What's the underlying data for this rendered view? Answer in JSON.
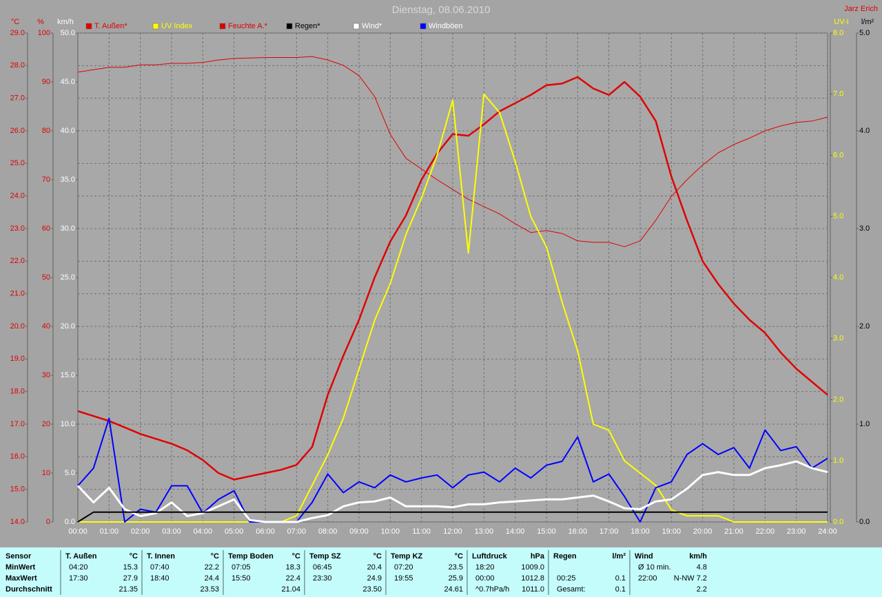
{
  "chart_data": {
    "type": "line",
    "title": "Dienstag, 08.06.2010",
    "author": "Jarz Erich",
    "background": "#a4a4a4",
    "grid": true,
    "grid_axis": "temp",
    "axes": {
      "temp": {
        "label": "°C",
        "color": "#e00000",
        "lim": [
          14,
          29
        ],
        "ticks": [
          {
            "value": 14,
            "label": "14.0"
          },
          {
            "value": 15,
            "label": "15.0"
          },
          {
            "value": 16,
            "label": "16.0"
          },
          {
            "value": 17,
            "label": "17.0"
          },
          {
            "value": 18,
            "label": "18.0"
          },
          {
            "value": 19,
            "label": "19.0"
          },
          {
            "value": 20,
            "label": "20.0"
          },
          {
            "value": 21,
            "label": "21.0"
          },
          {
            "value": 22,
            "label": "22.0"
          },
          {
            "value": 23,
            "label": "23.0"
          },
          {
            "value": 24,
            "label": "24.0"
          },
          {
            "value": 25,
            "label": "25.0"
          },
          {
            "value": 26,
            "label": "26.0"
          },
          {
            "value": 27,
            "label": "27.0"
          },
          {
            "value": 28,
            "label": "28.0"
          },
          {
            "value": 29,
            "label": "29.0"
          }
        ]
      },
      "hum": {
        "label": "%",
        "color": "#e00000",
        "lim": [
          0,
          100
        ],
        "ticks": [
          0,
          10,
          20,
          30,
          40,
          50,
          60,
          70,
          80,
          90,
          100
        ]
      },
      "wind": {
        "label": "km/h",
        "color": "#ffffff",
        "lim": [
          0,
          50
        ],
        "ticks": [
          {
            "value": 0,
            "label": "0.0"
          },
          {
            "value": 5,
            "label": "5.0"
          },
          {
            "value": 10,
            "label": "10.0"
          },
          {
            "value": 15,
            "label": "15.0"
          },
          {
            "value": 20,
            "label": "20.0"
          },
          {
            "value": 25,
            "label": "25.0"
          },
          {
            "value": 30,
            "label": "30.0"
          },
          {
            "value": 35,
            "label": "35.0"
          },
          {
            "value": 40,
            "label": "40.0"
          },
          {
            "value": 45,
            "label": "45.0"
          },
          {
            "value": 50,
            "label": "50.0"
          }
        ]
      },
      "uv": {
        "label": "UV-I",
        "color": "#ffff00",
        "lim": [
          0,
          8
        ],
        "ticks": [
          {
            "value": 0,
            "label": "0.0"
          },
          {
            "value": 1,
            "label": "1.0"
          },
          {
            "value": 2,
            "label": "2.0"
          },
          {
            "value": 3,
            "label": "3.0"
          },
          {
            "value": 4,
            "label": "4.0"
          },
          {
            "value": 5,
            "label": "5.0"
          },
          {
            "value": 6,
            "label": "6.0"
          },
          {
            "value": 7,
            "label": "7.0"
          },
          {
            "value": 8,
            "label": "8.0"
          }
        ]
      },
      "rain": {
        "label": "l/m²",
        "color": "#000000",
        "lim": [
          0,
          5
        ],
        "ticks": [
          {
            "value": 0,
            "label": "0.0"
          },
          {
            "value": 1,
            "label": "1.0"
          },
          {
            "value": 2,
            "label": "2.0"
          },
          {
            "value": 3,
            "label": "3.0"
          },
          {
            "value": 4,
            "label": "4.0"
          },
          {
            "value": 5,
            "label": "5.0"
          }
        ]
      }
    },
    "xlim": [
      0,
      24
    ],
    "xticks": [
      {
        "value": 0,
        "label": "00:00"
      },
      {
        "value": 1,
        "label": "01:00"
      },
      {
        "value": 2,
        "label": "02:00"
      },
      {
        "value": 3,
        "label": "03:00"
      },
      {
        "value": 4,
        "label": "04:00"
      },
      {
        "value": 5,
        "label": "05:00"
      },
      {
        "value": 6,
        "label": "06:00"
      },
      {
        "value": 7,
        "label": "07:00"
      },
      {
        "value": 8,
        "label": "08:00"
      },
      {
        "value": 9,
        "label": "09:00"
      },
      {
        "value": 10,
        "label": "10:00"
      },
      {
        "value": 11,
        "label": "11:00"
      },
      {
        "value": 12,
        "label": "12:00"
      },
      {
        "value": 13,
        "label": "13:00"
      },
      {
        "value": 14,
        "label": "14:00"
      },
      {
        "value": 15,
        "label": "15:00"
      },
      {
        "value": 16,
        "label": "16:00"
      },
      {
        "value": 17,
        "label": "17:00"
      },
      {
        "value": 18,
        "label": "18:00"
      },
      {
        "value": 19,
        "label": "19:00"
      },
      {
        "value": 20,
        "label": "20:00"
      },
      {
        "value": 21,
        "label": "21:00"
      },
      {
        "value": 22,
        "label": "22:00"
      },
      {
        "value": 23,
        "label": "23:00"
      },
      {
        "value": 24,
        "label": "24:00"
      }
    ],
    "x": [
      0,
      0.5,
      1,
      1.5,
      2,
      2.5,
      3,
      3.5,
      4,
      4.5,
      5,
      5.5,
      6,
      6.5,
      7,
      7.5,
      8,
      8.5,
      9,
      9.5,
      10,
      10.5,
      11,
      11.5,
      12,
      12.5,
      13,
      13.5,
      14,
      14.5,
      15,
      15.5,
      16,
      16.5,
      17,
      17.5,
      18,
      18.5,
      19,
      19.5,
      20,
      20.5,
      21,
      21.5,
      22,
      22.5,
      23,
      23.5,
      24
    ],
    "series": [
      {
        "name": "T. Außen*",
        "color": "#e00000",
        "label_color": "#e00000",
        "axis": "temp",
        "width": 2.5,
        "values": [
          17.4,
          17.25,
          17.1,
          16.9,
          16.7,
          16.55,
          16.4,
          16.2,
          15.9,
          15.5,
          15.3,
          15.4,
          15.5,
          15.6,
          15.75,
          16.3,
          17.9,
          19.1,
          20.2,
          21.5,
          22.6,
          23.4,
          24.5,
          25.3,
          25.9,
          25.85,
          26.2,
          26.6,
          26.85,
          27.1,
          27.4,
          27.45,
          27.65,
          27.3,
          27.1,
          27.5,
          27.05,
          26.3,
          24.6,
          23.25,
          22.0,
          21.3,
          20.7,
          20.2,
          19.8,
          19.2,
          18.7,
          18.3,
          17.9
        ]
      },
      {
        "name": "UV Index",
        "color": "#ffff00",
        "label_color": "#ffff00",
        "axis": "uv",
        "width": 2,
        "values": [
          0,
          0,
          0,
          0,
          0,
          0,
          0,
          0,
          0,
          0,
          0,
          0,
          0,
          0,
          0.1,
          0.6,
          1.1,
          1.7,
          2.5,
          3.3,
          3.9,
          4.7,
          5.3,
          6.0,
          6.9,
          4.4,
          7.0,
          6.7,
          5.9,
          5.0,
          4.5,
          3.6,
          2.8,
          1.6,
          1.5,
          1.0,
          0.8,
          0.6,
          0.2,
          0.1,
          0.1,
          0.1,
          0,
          0,
          0,
          0,
          0,
          0,
          0
        ]
      },
      {
        "name": "Feuchte A.*",
        "color": "#e00000",
        "label_color": "#e00000",
        "axis": "hum",
        "width": 1,
        "values": [
          92,
          92.5,
          93,
          93,
          93.5,
          93.5,
          93.8,
          93.8,
          94,
          94.5,
          94.8,
          94.9,
          95,
          95,
          95,
          95.2,
          94.5,
          93.4,
          91.3,
          87,
          79.3,
          74.4,
          72.2,
          70,
          68,
          66,
          64.5,
          63,
          61,
          59.2,
          59.6,
          59,
          57.5,
          57.2,
          57.2,
          56.3,
          57.5,
          61.7,
          66.6,
          70,
          73,
          75.5,
          77.2,
          78.5,
          80,
          81,
          81.7,
          82,
          82.8
        ]
      },
      {
        "name": "Regen*",
        "color": "#000000",
        "label_color": "#000000",
        "axis": "rain",
        "width": 2,
        "values": [
          0,
          0.1,
          0.1,
          0.1,
          0.1,
          0.1,
          0.1,
          0.1,
          0.1,
          0.1,
          0.1,
          0.1,
          0.1,
          0.1,
          0.1,
          0.1,
          0.1,
          0.1,
          0.1,
          0.1,
          0.1,
          0.1,
          0.1,
          0.1,
          0.1,
          0.1,
          0.1,
          0.1,
          0.1,
          0.1,
          0.1,
          0.1,
          0.1,
          0.1,
          0.1,
          0.1,
          0.1,
          0.1,
          0.1,
          0.1,
          0.1,
          0.1,
          0.1,
          0.1,
          0.1,
          0.1,
          0.1,
          0.1,
          0.1
        ]
      },
      {
        "name": "Wind*",
        "color": "#ffffff",
        "label_color": "#ffffff",
        "axis": "wind",
        "width": 3,
        "values": [
          3.7,
          2.0,
          3.5,
          1.3,
          0.6,
          0.9,
          2.0,
          0.6,
          0.9,
          1.6,
          2.3,
          0.2,
          0,
          0,
          0,
          0.4,
          0.7,
          1.6,
          2.0,
          2.1,
          2.5,
          1.6,
          1.6,
          1.6,
          1.5,
          1.8,
          1.8,
          2.0,
          2.1,
          2.2,
          2.3,
          2.3,
          2.5,
          2.7,
          2.1,
          1.4,
          1.3,
          2.1,
          2.3,
          3.4,
          4.8,
          5.1,
          4.8,
          4.8,
          5.5,
          5.8,
          6.2,
          5.5,
          5.1
        ]
      },
      {
        "name": "Windböen",
        "color": "#0000ff",
        "label_color": "#ffffff",
        "axis": "wind",
        "width": 2,
        "values": [
          3.7,
          5.5,
          10.6,
          0,
          1.3,
          1.0,
          3.7,
          3.7,
          0.9,
          2.3,
          3.2,
          0,
          0,
          0,
          0,
          2.0,
          4.9,
          3.0,
          4.1,
          3.5,
          4.8,
          4.1,
          4.5,
          4.8,
          3.5,
          4.8,
          5.1,
          4.1,
          5.5,
          4.5,
          5.8,
          6.2,
          8.7,
          4.1,
          4.9,
          2.6,
          0,
          3.5,
          4.1,
          6.9,
          8.0,
          6.9,
          7.6,
          5.5,
          9.4,
          7.3,
          7.7,
          5.5,
          6.5
        ]
      }
    ]
  },
  "table": {
    "row_labels": [
      "Sensor",
      "MinWert",
      "MaxWert",
      "Durchschnitt"
    ],
    "groups": [
      {
        "name": "T. Außen",
        "unit": "°C",
        "cells": [
          {
            "time": "04:20",
            "value": "15.3"
          },
          {
            "time": "17:30",
            "value": "27.9"
          },
          {
            "value": "21.35"
          }
        ]
      },
      {
        "name": "T. Innen",
        "unit": "°C",
        "cells": [
          {
            "time": "07:40",
            "value": "22.2"
          },
          {
            "time": "18:40",
            "value": "24.4"
          },
          {
            "value": "23.53"
          }
        ]
      },
      {
        "name": "Temp Boden",
        "unit": "°C",
        "cells": [
          {
            "time": "07:05",
            "value": "18.3"
          },
          {
            "time": "15:50",
            "value": "22.4"
          },
          {
            "value": "21.04"
          }
        ]
      },
      {
        "name": "Temp SZ",
        "unit": "°C",
        "cells": [
          {
            "time": "06:45",
            "value": "20.4"
          },
          {
            "time": "23:30",
            "value": "24.9"
          },
          {
            "value": "23.50"
          }
        ]
      },
      {
        "name": "Temp KZ",
        "unit": "°C",
        "cells": [
          {
            "time": "07:20",
            "value": "23.5"
          },
          {
            "time": "19:55",
            "value": "25.9"
          },
          {
            "value": "24.61"
          }
        ]
      },
      {
        "name": "Luftdruck",
        "unit": "hPa",
        "cells": [
          {
            "time": "18:20",
            "value": "1009.0"
          },
          {
            "time": "00:00",
            "value": "1012.8"
          },
          {
            "time": "^0.7hPa/h",
            "value": "1011.0"
          }
        ]
      },
      {
        "name": "Regen",
        "unit": "l/m²",
        "cells": [
          null,
          {
            "time": "00:25",
            "value": "0.1"
          },
          {
            "time": "Gesamt:",
            "value": "0.1"
          }
        ]
      },
      {
        "name": "Wind",
        "unit": "km/h",
        "cells": [
          {
            "time": "Ø 10 min.",
            "value": "4.8"
          },
          {
            "time": "22:00",
            "value": "N-NW 7.2"
          },
          {
            "value": "2.2"
          }
        ]
      }
    ]
  }
}
